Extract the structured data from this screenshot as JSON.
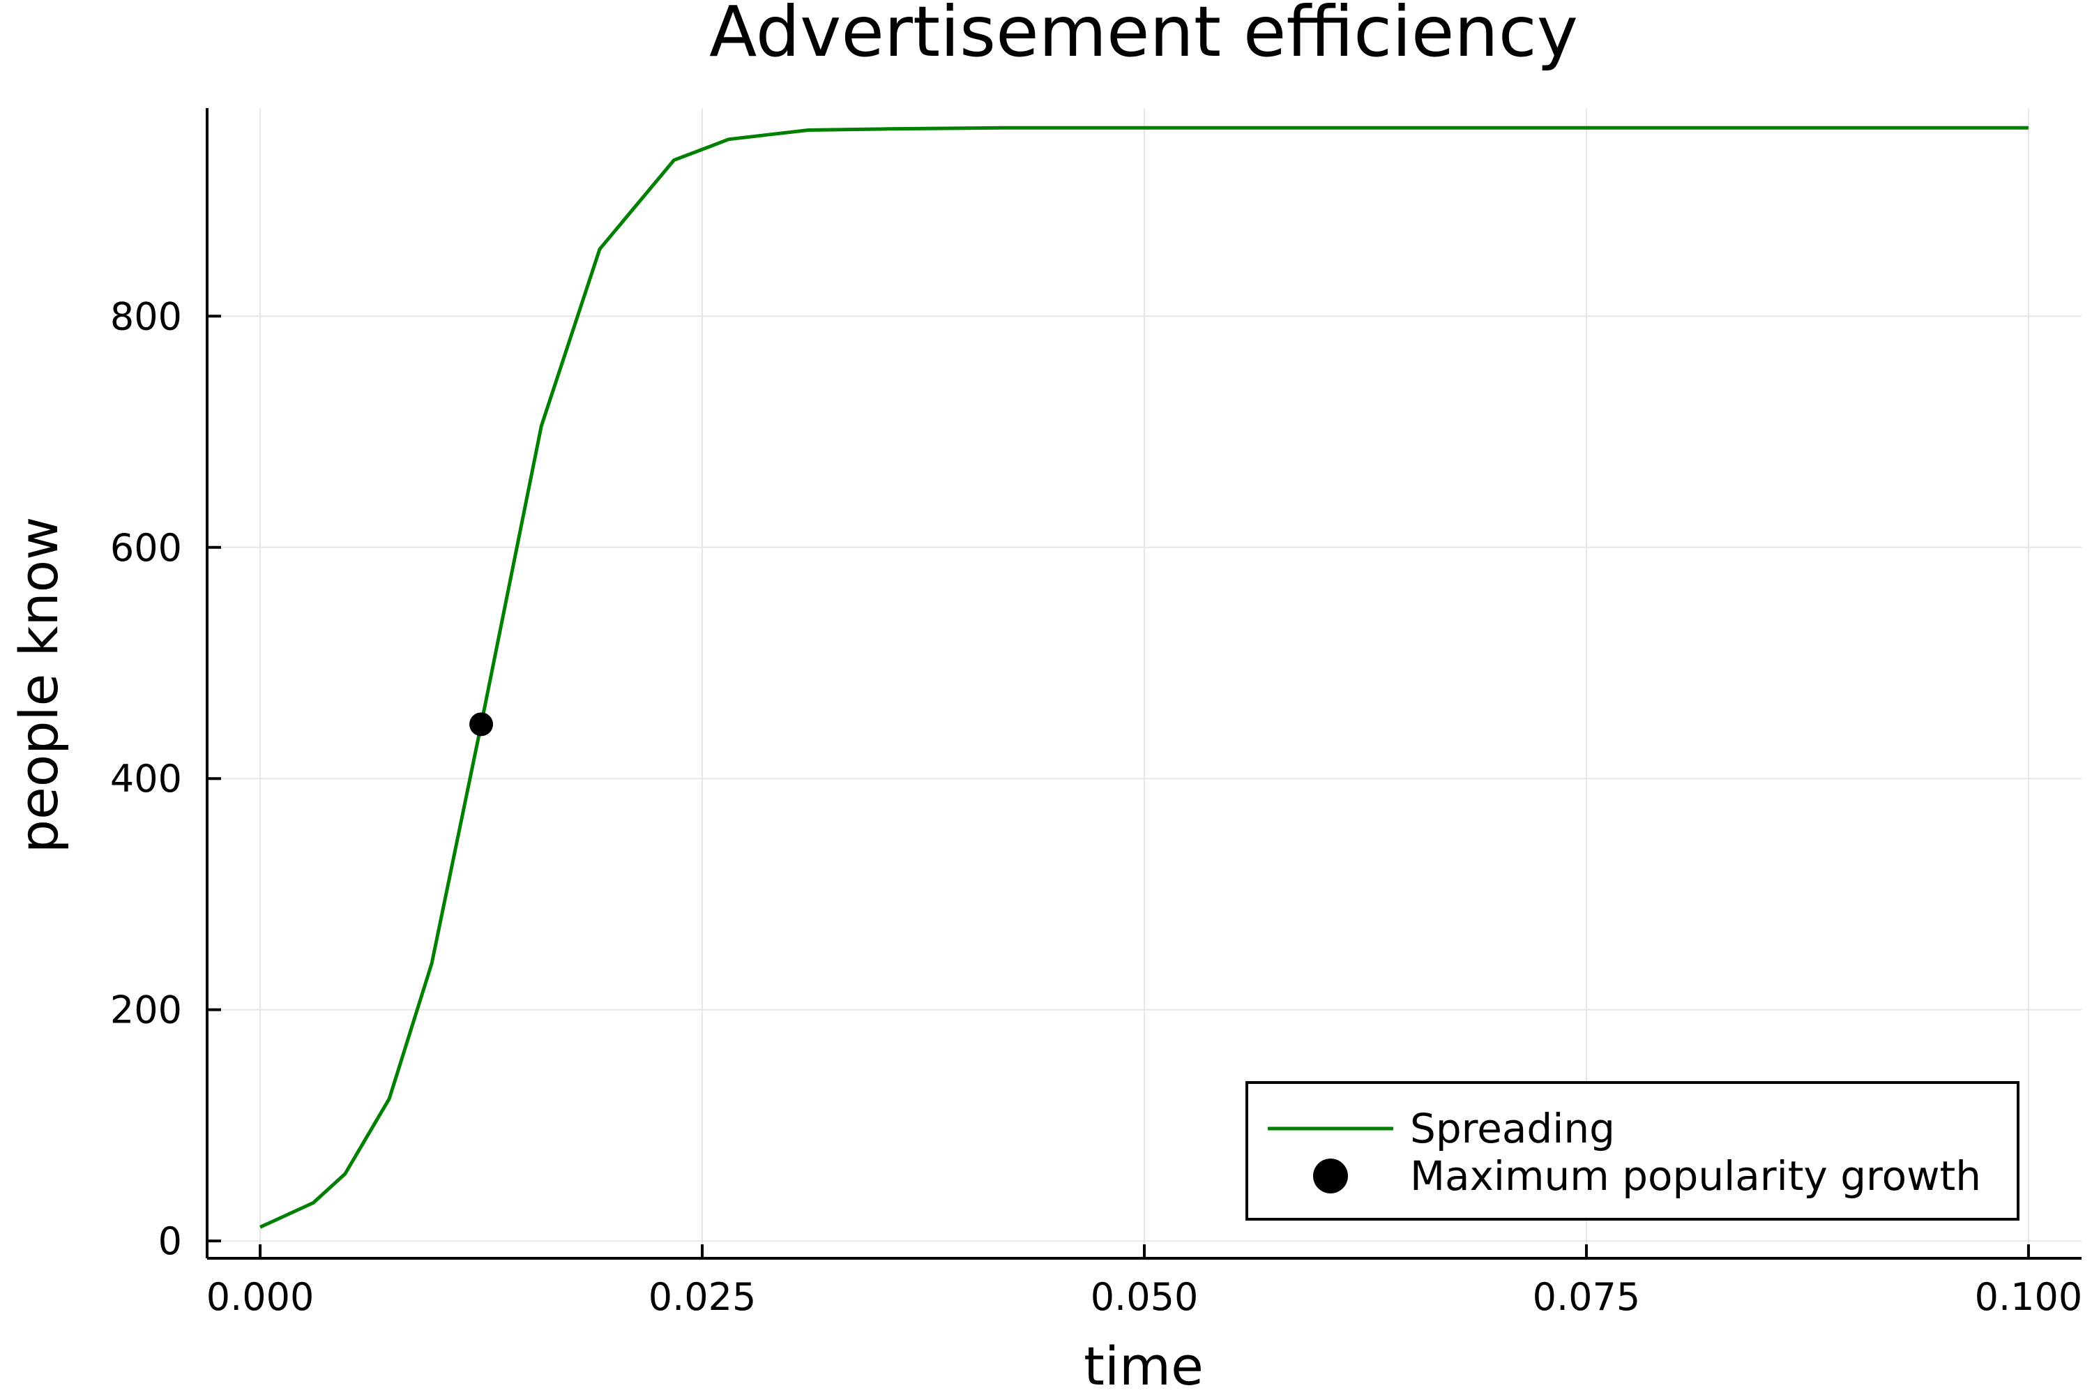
{
  "chart_data": {
    "type": "line",
    "title": "Advertisement efficiency",
    "xlabel": "time",
    "ylabel": "people know",
    "xlim": [
      -0.003,
      0.103
    ],
    "ylim": [
      -15,
      980
    ],
    "x_ticks": [
      0.0,
      0.025,
      0.05,
      0.075,
      0.1
    ],
    "x_tick_labels": [
      "0.000",
      "0.025",
      "0.050",
      "0.075",
      "0.100"
    ],
    "y_ticks": [
      0,
      200,
      400,
      600,
      800
    ],
    "y_tick_labels": [
      "0",
      "200",
      "400",
      "600",
      "800"
    ],
    "grid": true,
    "legend_position": "bottom-right",
    "series": [
      {
        "name": "Spreading",
        "kind": "line",
        "color": "#008000",
        "x": [
          0.0,
          0.003,
          0.0048,
          0.0073,
          0.0097,
          0.0125,
          0.0159,
          0.0192,
          0.0234,
          0.0265,
          0.031,
          0.0355,
          0.042,
          0.05,
          0.06,
          0.07,
          0.08,
          0.09,
          0.1
        ],
        "y": [
          12,
          33,
          58,
          123,
          240,
          447,
          705,
          858,
          935,
          953,
          961,
          962,
          963,
          963,
          963,
          963,
          963,
          963,
          963
        ]
      },
      {
        "name": "Maximum popularity growth",
        "kind": "scatter",
        "color": "#000000",
        "x": [
          0.0125
        ],
        "y": [
          447
        ]
      }
    ]
  }
}
